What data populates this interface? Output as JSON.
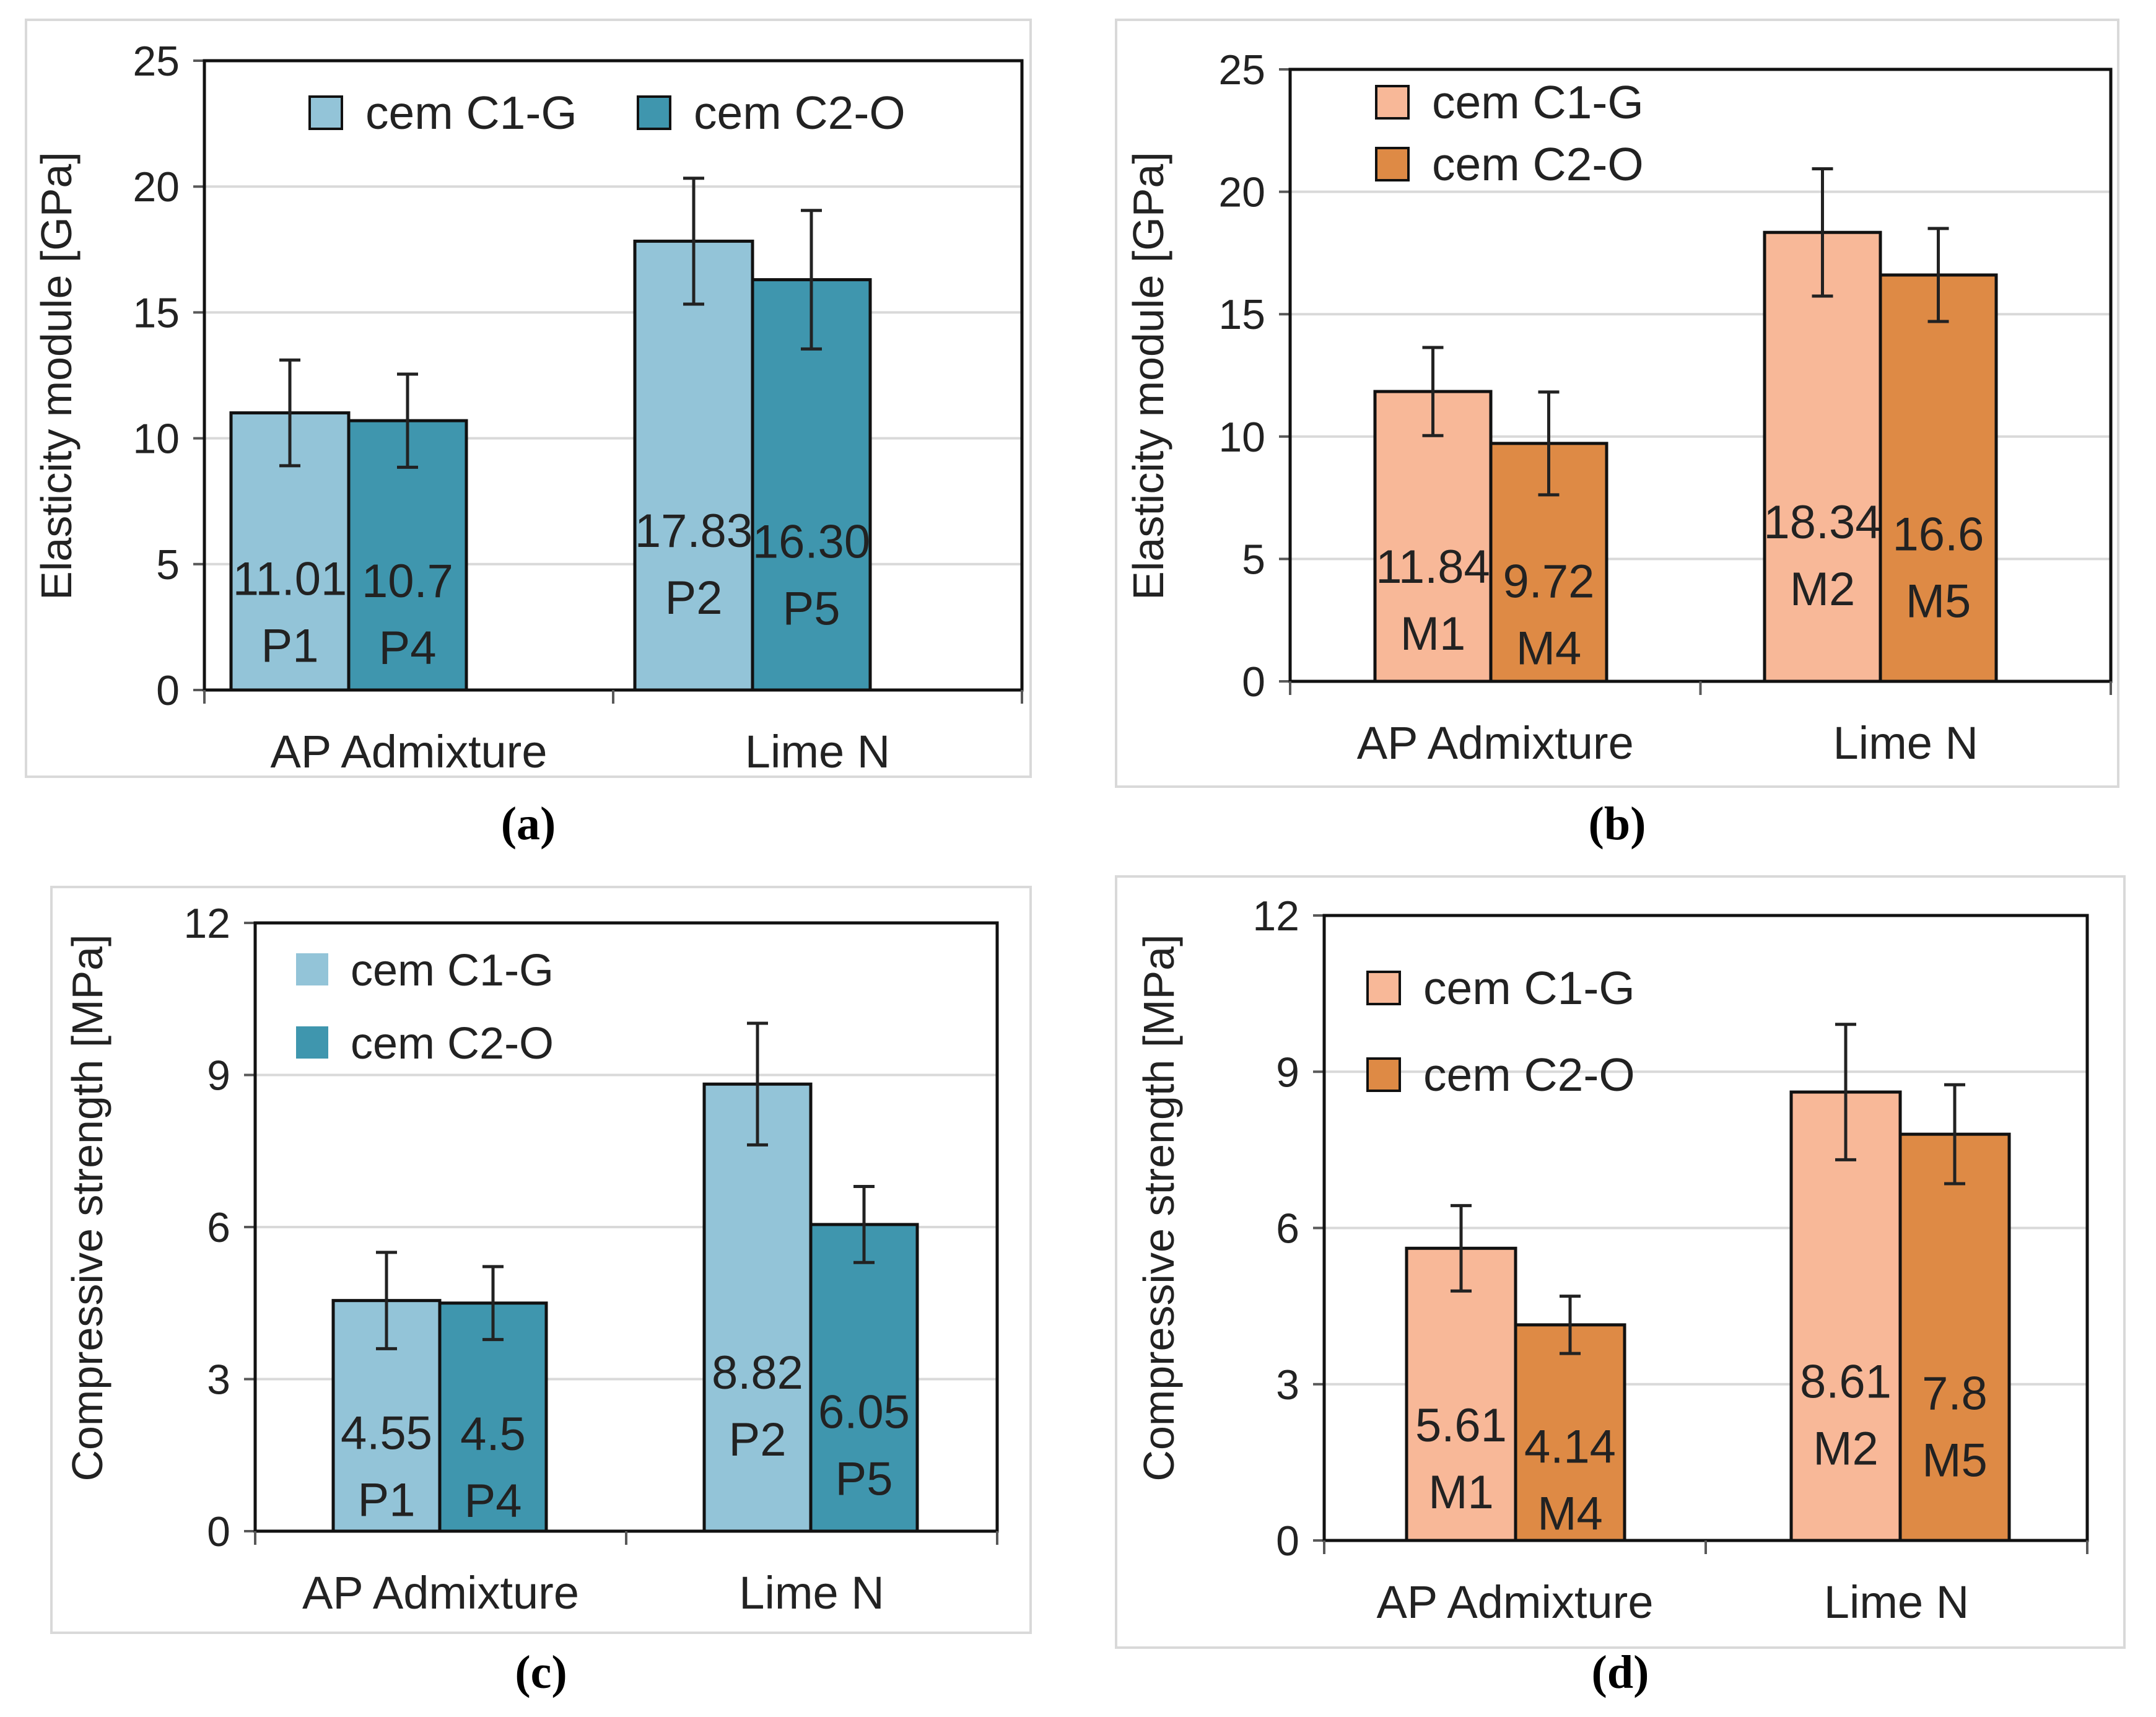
{
  "chart_data": [
    {
      "panel": "(a)",
      "type": "bar",
      "ylabel": "Elasticity module  [GPa]",
      "ylim": [
        0,
        25
      ],
      "yticks": [
        0,
        5,
        10,
        15,
        20,
        25
      ],
      "grid": true,
      "legend_layout": "horizontal",
      "legend_position": "top",
      "categories": [
        "AP Admixture",
        "Lime N"
      ],
      "series": [
        {
          "name": "cem C1-G",
          "color": "#93c4d8",
          "values": [
            11.01,
            17.83
          ],
          "errors": [
            2.1,
            2.5
          ],
          "labels": [
            "11.01",
            "17.83"
          ],
          "specimens": [
            "P1",
            "P2"
          ]
        },
        {
          "name": "cem C2-O",
          "color": "#3f96ae",
          "values": [
            10.7,
            16.3
          ],
          "errors": [
            1.85,
            2.75
          ],
          "labels": [
            "10.7",
            "16.30"
          ],
          "specimens": [
            "P4",
            "P5"
          ]
        }
      ]
    },
    {
      "panel": "(b)",
      "type": "bar",
      "ylabel": "Elasticity module  [GPa]",
      "ylim": [
        0,
        25
      ],
      "yticks": [
        0,
        5,
        10,
        15,
        20,
        25
      ],
      "grid": true,
      "legend_layout": "vertical",
      "legend_position": "top-left",
      "categories": [
        "AP Admixture",
        "Lime N"
      ],
      "series": [
        {
          "name": "cem C1-G",
          "color": "#f8b898",
          "values": [
            11.84,
            18.34
          ],
          "errors": [
            1.8,
            2.6
          ],
          "labels": [
            "11.84",
            "18.34"
          ],
          "specimens": [
            "M1",
            "M2"
          ]
        },
        {
          "name": "cem C2-O",
          "color": "#de8a45",
          "values": [
            9.72,
            16.6
          ],
          "errors": [
            2.1,
            1.9
          ],
          "labels": [
            "9.72",
            "16.6"
          ],
          "specimens": [
            "M4",
            "M5"
          ]
        }
      ]
    },
    {
      "panel": "(c)",
      "type": "bar",
      "ylabel": "Compressive strength [MPa]",
      "ylim": [
        0,
        12
      ],
      "yticks": [
        0,
        3,
        6,
        9,
        12
      ],
      "grid": true,
      "legend_layout": "vertical",
      "legend_position": "top-left",
      "categories": [
        "AP Admixture",
        "Lime N"
      ],
      "series": [
        {
          "name": "cem C1-G",
          "color": "#93c4d8",
          "values": [
            4.55,
            8.82
          ],
          "errors": [
            0.95,
            1.2
          ],
          "labels": [
            "4.55",
            "8.82"
          ],
          "specimens": [
            "P1",
            "P2"
          ]
        },
        {
          "name": "cem C2-O",
          "color": "#3f96ae",
          "values": [
            4.5,
            6.05
          ],
          "errors": [
            0.72,
            0.75
          ],
          "labels": [
            "4.5",
            "6.05"
          ],
          "specimens": [
            "P4",
            "P5"
          ]
        }
      ]
    },
    {
      "panel": "(d)",
      "type": "bar",
      "ylabel": "Compressive strength [MPa]",
      "ylim": [
        0,
        12
      ],
      "yticks": [
        0,
        3,
        6,
        9,
        12
      ],
      "grid": true,
      "legend_layout": "vertical",
      "legend_position": "top-left",
      "categories": [
        "AP Admixture",
        "Lime N"
      ],
      "series": [
        {
          "name": "cem C1-G",
          "color": "#f8b898",
          "values": [
            5.61,
            8.61
          ],
          "errors": [
            0.82,
            1.3
          ],
          "labels": [
            "5.61",
            "8.61"
          ],
          "specimens": [
            "M1",
            "M2"
          ]
        },
        {
          "name": "cem C2-O",
          "color": "#de8a45",
          "values": [
            4.14,
            7.8
          ],
          "errors": [
            0.55,
            0.95
          ],
          "labels": [
            "4.14",
            "7.8"
          ],
          "specimens": [
            "M4",
            "M5"
          ]
        }
      ]
    }
  ]
}
